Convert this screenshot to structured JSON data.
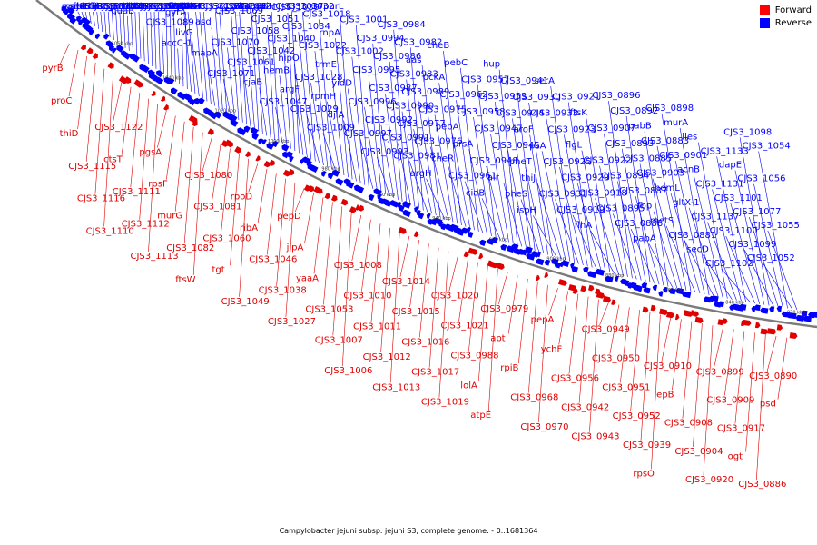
{
  "legend": {
    "items": [
      {
        "label": "Forward",
        "color": "#ff0000"
      },
      {
        "label": "Reverse",
        "color": "#0000ff"
      }
    ]
  },
  "caption": "Campylobacter jejuni subsp. jejuni S3, complete genome. - 0..1681364",
  "strands": {
    "forward_color": "#e00000",
    "reverse_color": "#0000ff",
    "backbone_color": "#808080"
  },
  "ticks": [
    "1060 kbp",
    "1040 kbp",
    "1020 kbp",
    "1000 kbp",
    "980 kbp",
    "960 kbp",
    "940 kbp",
    "920 kbp",
    "900 kbp",
    "880 kbp",
    "860 kbp",
    "840 kbp",
    "820 kbp"
  ],
  "reverse_labels": [
    "metK",
    "yajC",
    "secF",
    "folC",
    "hemD",
    "mfd",
    "thiE",
    "CJS3_1121",
    "lon",
    "CJS3_1108",
    "CJS3_1105",
    "CJS3_1104",
    "gatA",
    "guaB",
    "murC",
    "thiS",
    "thiF",
    "thiG",
    "thiH",
    "CJS3_1092",
    "CJS3_1091",
    "CJS3_1090",
    "CJS3_1089",
    "CJS3_1085",
    "CJS3_1084",
    "CJS3_1083",
    "accC-1",
    "gyrA",
    "lepA",
    "flgR",
    "livM",
    "livG",
    "livK",
    "livH",
    "livF",
    "mapA",
    "asd",
    "CJS3_1075",
    "CJS3_1074",
    "CJS3_1071",
    "CJS3_1070",
    "CJS3_1069",
    "CJS3_1068",
    "CJS3_1062",
    "CJS3_1061",
    "CJS3_1058",
    "aroB",
    "hemN",
    "cjaB",
    "CJS3_1042",
    "CJS3_1051",
    "yeiH",
    "CJS3_1047",
    "hemB",
    "CJS3_1040",
    "CJS3_1039",
    "CJS3_1037",
    "argF",
    "hipO",
    "CJS3_1034",
    "CJS3_1032",
    "CJS3_1029",
    "CJS3_1028",
    "CJS3_1022",
    "CJS3_1018",
    "CJS3_1009",
    "rpmH",
    "trmE",
    "rnpA",
    "purL",
    "djlA",
    "yidD",
    "CJS3_1002",
    "CJS3_1001",
    "CJS3_0997",
    "CJS3_0996",
    "CJS3_0995",
    "CJS3_0994",
    "CJS3_0993",
    "CJS3_0992",
    "CJS3_0987",
    "CJS3_0986",
    "CJS3_0984",
    "CJS3_0991",
    "CJS3_0990",
    "CJS3_0983",
    "CJS3_0982",
    "CJS3_0981",
    "CJS3_0977",
    "CJS3_0989",
    "aas",
    "argH",
    "CJS3_0976",
    "CJS3_0975",
    "pckA",
    "cheB",
    "cheR",
    "pebA",
    "CJS3_0962",
    "pebC",
    "CJS3_0961",
    "prsA",
    "CJS3_0958",
    "CJS3_0957",
    "ciaB",
    "CJS3_0948",
    "CJS3_0947",
    "CJS3_0953",
    "hup",
    "alr",
    "CJS3_0945",
    "CJS3_0944",
    "CJS3_0941",
    "pheS",
    "pheT",
    "aroF",
    "CJS3_0930",
    "ispH",
    "thiJ",
    "rpsA",
    "CJS3_0933",
    "serA",
    "CJS3_0931",
    "CJS3_0925",
    "CJS3_0923",
    "CJS3_0921",
    "CJS3_0919",
    "CJS3_0929",
    "flgL",
    "ftsK",
    "flhA",
    "CJS3_0918",
    "CJS3_0922",
    "CJS3_0907",
    "CJS3_0896",
    "CJS3_0895",
    "CJS3_0894",
    "CJS3_0893",
    "CJS3_0892",
    "CJS3_0888",
    "CJS3_0887",
    "CJS3_0885",
    "pabB",
    "pabA",
    "fbp",
    "CJS3_0903",
    "CJS3_0883",
    "CJS3_0898",
    "metS",
    "hemL",
    "CJS3_0901",
    "murA",
    "CJS3_0881",
    "gltX-1",
    "acnB",
    "iles",
    "secD",
    "CJS3_1137",
    "CJS3_1131",
    "CJS3_1133",
    "CJS3_1102",
    "CJS3_1100",
    "CJS3_1101",
    "dapE",
    "CJS3_1098",
    "CJS3_1099",
    "CJS3_1077",
    "CJS3_1056",
    "CJS3_1054",
    "CJS3_1052",
    "CJS3_1055"
  ],
  "forward_labels": [
    "pyrB",
    "proC",
    "thiD",
    "CJS3_1115",
    "CJS3_1116",
    "CJS3_1110",
    "CJS3_1122",
    "ctsT",
    "CJS3_1111",
    "CJS3_1112",
    "CJS3_1113",
    "pgsA",
    "rpsF",
    "murG",
    "CJS3_1082",
    "ftsW",
    "CJS3_1080",
    "CJS3_1081",
    "CJS3_1060",
    "tgt",
    "CJS3_1049",
    "rpoD",
    "ribA",
    "CJS3_1046",
    "CJS3_1038",
    "CJS3_1027",
    "pepD",
    "jlpA",
    "yaaA",
    "CJS3_1053",
    "CJS3_1007",
    "CJS3_1006",
    "CJS3_1008",
    "CJS3_1010",
    "CJS3_1011",
    "CJS3_1012",
    "CJS3_1013",
    "CJS3_1014",
    "CJS3_1015",
    "CJS3_1016",
    "CJS3_1017",
    "CJS3_1019",
    "CJS3_1020",
    "CJS3_1021",
    "CJS3_0988",
    "lolA",
    "atpE",
    "CJS3_0979",
    "apt",
    "rpiB",
    "CJS3_0968",
    "CJS3_0970",
    "pepA",
    "ychF",
    "CJS3_0956",
    "CJS3_0942",
    "CJS3_0943",
    "CJS3_0949",
    "CJS3_0950",
    "CJS3_0951",
    "CJS3_0952",
    "CJS3_0939",
    "rpsO",
    "CJS3_0910",
    "lepB",
    "CJS3_0908",
    "CJS3_0904",
    "CJS3_0920",
    "CJS3_0899",
    "CJS3_0909",
    "CJS3_0917",
    "ogt",
    "CJS3_0886",
    "CJS3_0890",
    "psd"
  ]
}
